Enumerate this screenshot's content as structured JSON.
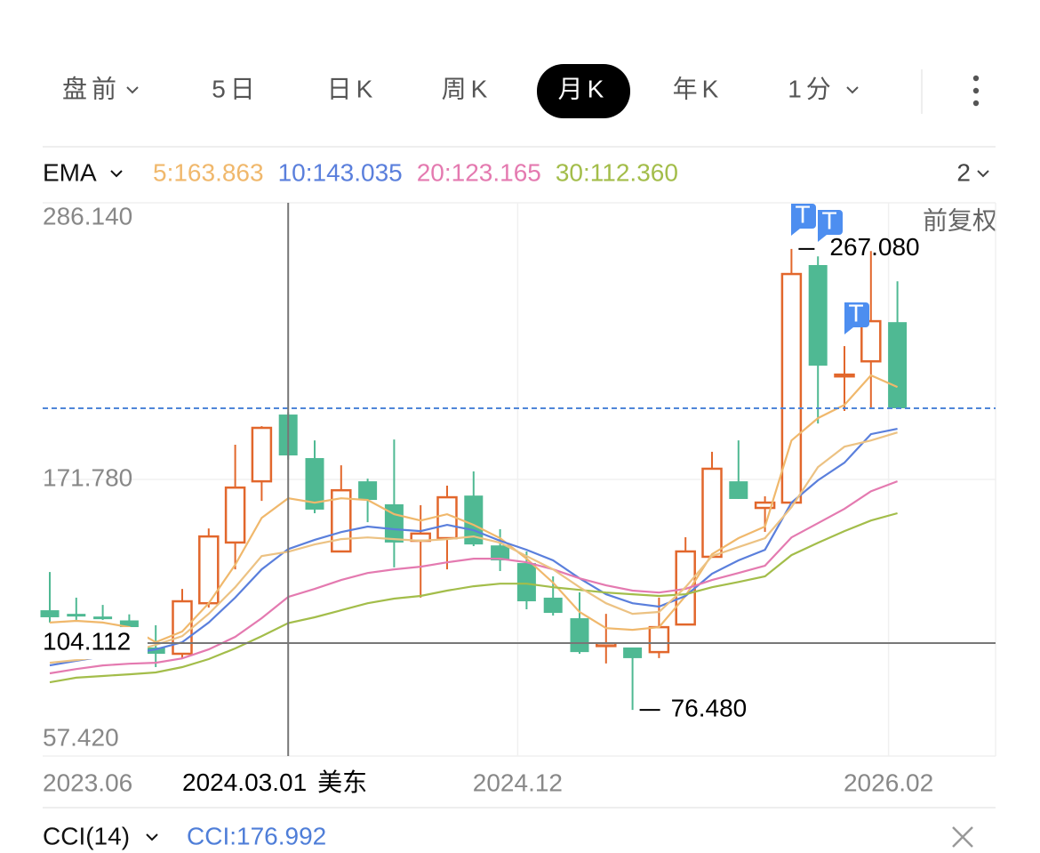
{
  "toolbar": {
    "tabs": [
      {
        "label": "盘前",
        "menu": true
      },
      {
        "label": "5日",
        "menu": false
      },
      {
        "label": "日K",
        "menu": false
      },
      {
        "label": "周K",
        "menu": false
      },
      {
        "label": "月K",
        "menu": false
      },
      {
        "label": "年K",
        "menu": false
      },
      {
        "label": "1分",
        "menu": true
      }
    ],
    "active": 4
  },
  "chart_data": {
    "type": "candlestick",
    "indicator": "EMA",
    "layout_count": "2",
    "adjust_label": "前复权",
    "categories": [
      "2023.06",
      null,
      null,
      null,
      null,
      null,
      null,
      null,
      null,
      null,
      null,
      null,
      null,
      null,
      null,
      null,
      null,
      null,
      "2024.12",
      null,
      null,
      null,
      null,
      null,
      null,
      null,
      null,
      null,
      null,
      null,
      null,
      null,
      "2026.02"
    ],
    "ohlc": {
      "open": [
        117.7,
        116.2,
        115.1,
        113.5,
        102.3,
        99.7,
        120.6,
        145.7,
        171.0,
        198.6,
        180.6,
        142.0,
        171.0,
        161.5,
        146.4,
        147.5,
        165.1,
        144.5,
        137.2,
        122.9,
        114.4,
        102.9,
        102.3,
        100.4,
        111.8,
        139.8,
        171.0,
        160.0,
        162.2,
        260.4,
        214.4,
        220.6,
        236.8
      ],
      "high": [
        133.5,
        122.9,
        119.9,
        116.0,
        111.5,
        126.5,
        151.5,
        186.1,
        193.8,
        199.5,
        187.9,
        177.6,
        172.1,
        188.3,
        161.1,
        169.2,
        175.1,
        151.2,
        142.0,
        131.7,
        125.1,
        116.2,
        102.3,
        122.9,
        147.9,
        183.2,
        187.9,
        164.8,
        267.08,
        264.0,
        226.9,
        266.2,
        253.7
      ],
      "low": [
        112.6,
        113.7,
        113.7,
        104.0,
        94.2,
        97.9,
        118.8,
        134.6,
        162.9,
        180.0,
        157.8,
        142.0,
        154.1,
        135.4,
        122.9,
        134.6,
        144.2,
        133.9,
        118.1,
        115.5,
        99.7,
        95.7,
        76.48,
        97.9,
        111.8,
        139.8,
        163.7,
        150.1,
        162.2,
        194.9,
        200.1,
        201.2,
        201.2
      ],
      "close": [
        114.8,
        115.1,
        114.0,
        108.0,
        99.7,
        121.4,
        148.2,
        168.4,
        193.1,
        181.7,
        159.3,
        167.3,
        163.3,
        145.7,
        149.4,
        164.4,
        144.9,
        138.3,
        121.4,
        116.6,
        100.4,
        104.0,
        97.9,
        110.7,
        142.0,
        176.2,
        163.7,
        162.2,
        256.7,
        218.8,
        215.1,
        237.2,
        201.2
      ]
    },
    "up_color": "#e2672c",
    "down_color": "#4fb993",
    "last_price_color": "#4f86d8",
    "lines": [
      {
        "name": "5:163.863",
        "color": "#f0b86c",
        "values": [
          112.6,
          113.3,
          112.6,
          110.7,
          104.5,
          108.9,
          120.6,
          136.5,
          155.9,
          164.0,
          162.2,
          164.0,
          163.3,
          157.4,
          154.8,
          157.4,
          153.0,
          147.5,
          139.0,
          129.1,
          117.0,
          110.3,
          109.6,
          110.7,
          123.6,
          140.9,
          147.5,
          152.3,
          187.9,
          197.1,
          202.6,
          214.8,
          210.0
        ]
      },
      {
        "name": "10:143.035",
        "color": "#5a7fdc",
        "values": [
          94.9,
          96.8,
          98.6,
          99.7,
          101.5,
          104.5,
          112.6,
          122.9,
          134.6,
          143.0,
          146.8,
          150.0,
          152.3,
          151.2,
          150.4,
          153.0,
          150.8,
          146.4,
          142.7,
          138.3,
          130.9,
          124.3,
          120.6,
          119.2,
          123.6,
          132.8,
          138.3,
          142.7,
          162.2,
          171.4,
          178.7,
          190.5,
          192.7
        ]
      },
      {
        "name": "20:123.165",
        "color": "#e47ab0",
        "values": [
          91.6,
          93.4,
          94.9,
          95.6,
          96.0,
          97.8,
          101.5,
          106.7,
          114.4,
          123.2,
          126.5,
          130.2,
          133.1,
          134.6,
          135.7,
          137.5,
          139.0,
          139.0,
          137.5,
          134.6,
          130.9,
          128.0,
          125.8,
          125.0,
          126.5,
          130.2,
          133.1,
          136.1,
          147.8,
          153.7,
          159.6,
          166.9,
          171.0
        ]
      },
      {
        "name": "30:112.360",
        "color": "#a3bd4a",
        "values": [
          87.9,
          89.8,
          90.5,
          91.2,
          92.0,
          94.2,
          97.5,
          101.9,
          107.0,
          112.4,
          114.8,
          117.7,
          120.6,
          122.5,
          123.6,
          125.8,
          127.6,
          128.7,
          128.7,
          127.2,
          126.1,
          125.0,
          124.3,
          123.6,
          124.3,
          127.2,
          129.4,
          131.7,
          140.5,
          145.6,
          150.4,
          154.8,
          157.8
        ]
      },
      {
        "color": "#ecc283",
        "values": [
          96.0,
          97.1,
          98.6,
          100.4,
          103.4,
          107.0,
          116.2,
          127.2,
          140.1,
          141.9,
          144.9,
          147.1,
          147.8,
          147.1,
          146.4,
          147.1,
          148.2,
          145.6,
          140.1,
          134.6,
          127.2,
          120.6,
          116.2,
          117.0,
          127.2,
          140.1,
          143.8,
          147.5,
          160.3,
          176.9,
          185.3,
          187.9,
          191.2
        ]
      }
    ],
    "ylim": [
      57.42,
      286.14
    ],
    "yticks": [
      {
        "value": 57.42,
        "label": "57.420"
      },
      {
        "value": 171.78,
        "label": "171.780"
      },
      {
        "value": 286.14,
        "label": "286.140"
      }
    ],
    "grid": true,
    "high_label": "267.080",
    "low_label": "76.480",
    "crosshair": {
      "date": "2024.03.01",
      "zone": "美东",
      "value": 104.112
    }
  },
  "sub_indicator": {
    "name": "CCI(14)",
    "reading": "CCI:176.992"
  }
}
